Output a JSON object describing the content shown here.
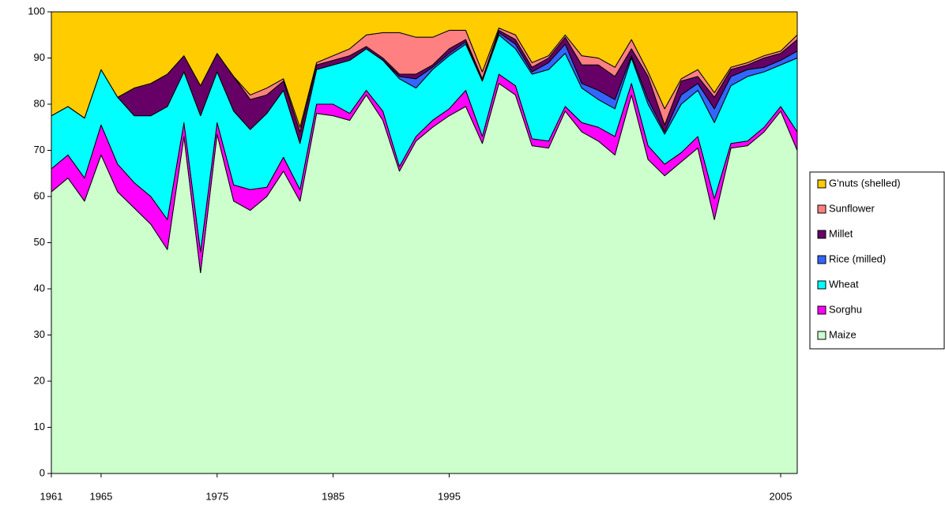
{
  "chart_data": {
    "type": "stacked_area",
    "categories": [
      "1961",
      null,
      null,
      "1965",
      null,
      null,
      null,
      null,
      null,
      null,
      "1975",
      null,
      null,
      null,
      null,
      null,
      null,
      "1985",
      null,
      null,
      null,
      null,
      null,
      null,
      "1995",
      null,
      null,
      null,
      null,
      null,
      null,
      null,
      null,
      null,
      null,
      null,
      null,
      null,
      null,
      null,
      null,
      null,
      null,
      null,
      "2005",
      null
    ],
    "ylim": [
      0,
      100
    ],
    "yticks": [
      0,
      10,
      20,
      30,
      40,
      50,
      60,
      70,
      80,
      90,
      100
    ],
    "legend": "right",
    "series": [
      {
        "name": "Maize",
        "color": "#ccffcc",
        "values": [
          61,
          64,
          59,
          69,
          61,
          57.5,
          54,
          48.5,
          73,
          43.5,
          73.5,
          59,
          57,
          60,
          65.5,
          59,
          78,
          77.5,
          76.5,
          82,
          76.5,
          65.5,
          72,
          75,
          77.5,
          79.5,
          71.5,
          84.5,
          82,
          71,
          70.5,
          78.5,
          74,
          72,
          69,
          82,
          68,
          64.5,
          67.5,
          70.5,
          55,
          70.5,
          71,
          74,
          78.5,
          70
        ]
      },
      {
        "name": "Sorghu",
        "color": "#ff00ff",
        "values": [
          5,
          5,
          5,
          6.5,
          6,
          5.5,
          6,
          6.5,
          3,
          4.5,
          2.5,
          3.5,
          4.5,
          2,
          3,
          2.5,
          2,
          2.5,
          1.5,
          1,
          2,
          1,
          1,
          1.5,
          1.5,
          3.5,
          1.5,
          2,
          2,
          1.5,
          1.5,
          1,
          2,
          3,
          4,
          2.5,
          3,
          2.5,
          2,
          2.5,
          4.5,
          1,
          1,
          1,
          1,
          4
        ]
      },
      {
        "name": "Wheat",
        "color": "#00ffff",
        "values": [
          11.5,
          10.5,
          13,
          12,
          14.5,
          14.5,
          17.5,
          24.5,
          11,
          29.5,
          11,
          16,
          13,
          16,
          14.5,
          10,
          7.5,
          8.5,
          11.5,
          9,
          11,
          19,
          10.5,
          11,
          11.5,
          10,
          12,
          8.5,
          8,
          14,
          15.5,
          11.5,
          7.5,
          6,
          6,
          5.5,
          9,
          6.5,
          10.5,
          10,
          16.5,
          12.5,
          14,
          12,
          9,
          16
        ]
      },
      {
        "name": "Rice (milled)",
        "color": "#3366ff",
        "values": [
          0,
          0,
          0,
          0,
          0,
          0,
          0,
          0,
          0,
          0,
          0,
          0,
          0,
          0,
          0,
          0,
          0,
          0,
          0,
          0,
          0,
          0.5,
          2,
          0.5,
          0.5,
          0.5,
          0,
          0.5,
          1,
          0.5,
          1.5,
          2,
          1,
          2,
          2,
          0.5,
          1,
          0.5,
          2,
          1.5,
          3,
          2,
          1.5,
          1,
          1,
          1.5
        ]
      },
      {
        "name": "Millet",
        "color": "#660066",
        "values": [
          0,
          0,
          0,
          0,
          0,
          6,
          7,
          7,
          3.5,
          6.5,
          4,
          7.5,
          6.5,
          4,
          2,
          2.5,
          1,
          1,
          1,
          0.5,
          0.5,
          0.5,
          1,
          0.5,
          1,
          0.5,
          0.5,
          0.5,
          1,
          1,
          1,
          1.5,
          4,
          5.5,
          5,
          1.5,
          5,
          1.5,
          3,
          1.5,
          2.5,
          1.5,
          1,
          2,
          1.5,
          2.5
        ]
      },
      {
        "name": "Sunflower",
        "color": "#ff8080",
        "values": [
          0,
          0,
          0,
          0,
          0,
          0,
          0,
          0,
          0,
          0,
          0,
          0,
          1,
          1.5,
          0.5,
          1,
          0.5,
          1,
          1.5,
          2.5,
          5.5,
          9,
          8,
          6,
          4,
          2,
          1.5,
          0.5,
          1,
          1,
          0.5,
          0.5,
          2,
          1.5,
          2,
          2,
          1,
          3.5,
          0.5,
          1.5,
          1,
          0.5,
          0.5,
          0.5,
          0.5,
          1
        ]
      },
      {
        "name": "G'nuts (shelled)",
        "color": "#ffcc00",
        "values": [
          22.5,
          20.5,
          23,
          12.5,
          18.5,
          16.5,
          15.5,
          13.5,
          9.5,
          16,
          9,
          14,
          18,
          16.5,
          14.5,
          25,
          11,
          9.5,
          8,
          5,
          4.5,
          4.5,
          5.5,
          5.5,
          4,
          4,
          13,
          3.5,
          5,
          11,
          9.5,
          5,
          9.5,
          10,
          12,
          6,
          13,
          21,
          14.5,
          12.5,
          17.5,
          12,
          11,
          9.5,
          8.5,
          5
        ]
      }
    ]
  }
}
